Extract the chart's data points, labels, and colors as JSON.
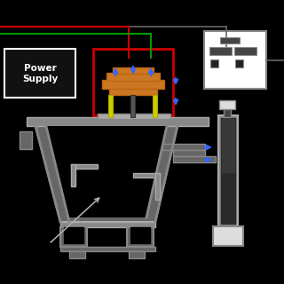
{
  "bg_color": "#000000",
  "gray": "#888888",
  "dark_gray": "#444444",
  "med_gray": "#666666",
  "light_gray": "#aaaaaa",
  "orange": "#cc7722",
  "orange2": "#bb6611",
  "red": "#cc0000",
  "green": "#009900",
  "blue_arrow": "#3366ff",
  "white": "#ffffff",
  "off_white": "#dddddd",
  "power_supply_label": "Power\nSupply"
}
